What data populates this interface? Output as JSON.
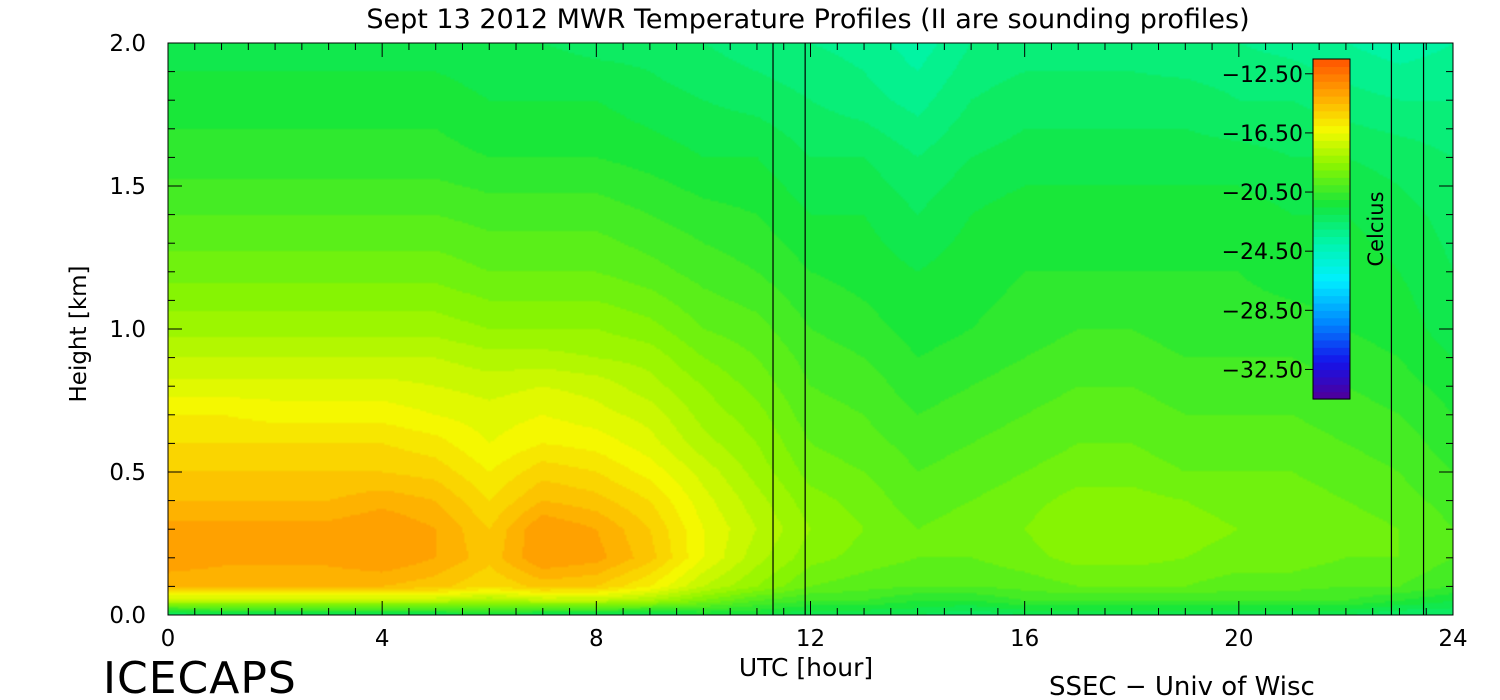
{
  "chart_data": {
    "type": "heatmap",
    "title": "Sept 13 2012 MWR Temperature Profiles (II are sounding profiles)",
    "xlabel": "UTC [hour]",
    "ylabel": "Height [km]",
    "xlim": [
      0,
      24
    ],
    "ylim": [
      0,
      2
    ],
    "x_ticks": [
      0,
      4,
      8,
      12,
      16,
      20,
      24
    ],
    "x_tick_labels": [
      "0",
      "4",
      "8",
      "12",
      "16",
      "20",
      "24"
    ],
    "y_ticks": [
      0.0,
      0.5,
      1.0,
      1.5,
      2.0
    ],
    "y_tick_labels": [
      "0.0",
      "0.5",
      "1.0",
      "1.5",
      "2.0"
    ],
    "colorbar": {
      "label": "Celcius",
      "range": [
        -34.5,
        -11.5
      ],
      "tick_values": [
        -12.5,
        -16.5,
        -20.5,
        -24.5,
        -28.5,
        -32.5
      ],
      "tick_labels": [
        "−12.50",
        "−16.50",
        "−20.50",
        "−24.50",
        "−28.50",
        "−32.50"
      ]
    },
    "sounding_profiles": [
      {
        "start": 11.3,
        "end": 11.9
      },
      {
        "start": 22.85,
        "end": 23.45
      }
    ],
    "profile_times": [
      0,
      1,
      2,
      3,
      4,
      5,
      6,
      7,
      8,
      9,
      10,
      11,
      12,
      13,
      14,
      15,
      16,
      17,
      18,
      19,
      20,
      21,
      22,
      23,
      24
    ],
    "profile_heights": [
      0.0,
      0.05,
      0.1,
      0.2,
      0.3,
      0.4,
      0.5,
      0.6,
      0.7,
      0.8,
      0.9,
      1.0,
      1.2,
      1.4,
      1.6,
      1.8,
      2.0
    ],
    "temperatures": [
      [
        -22.5,
        -22.0,
        -22.0,
        -22.0,
        -22.0,
        -22.0,
        -21.5,
        -22.0,
        -22.0,
        -22.0,
        -21.5,
        -21.5,
        -22.0,
        -22.0,
        -22.0,
        -22.5,
        -22.0,
        -22.0,
        -22.0,
        -22.0,
        -22.0,
        -22.0,
        -22.0,
        -22.5,
        -22.5
      ],
      [
        -17.5,
        -17.5,
        -17.5,
        -17.5,
        -17.5,
        -17.5,
        -18.0,
        -17.5,
        -17.5,
        -18.0,
        -19.0,
        -20.0,
        -20.5,
        -20.5,
        -21.0,
        -21.0,
        -20.5,
        -20.5,
        -20.5,
        -20.5,
        -20.5,
        -20.5,
        -20.5,
        -21.0,
        -21.5
      ],
      [
        -14.5,
        -14.5,
        -14.5,
        -14.5,
        -14.5,
        -14.8,
        -15.5,
        -14.8,
        -15.0,
        -16.0,
        -17.5,
        -18.5,
        -19.5,
        -19.8,
        -20.0,
        -20.0,
        -19.8,
        -19.5,
        -19.5,
        -19.5,
        -19.8,
        -19.8,
        -20.0,
        -20.0,
        -20.5
      ],
      [
        -13.5,
        -13.8,
        -13.8,
        -13.8,
        -13.5,
        -14.0,
        -14.8,
        -13.5,
        -13.8,
        -14.8,
        -16.5,
        -17.8,
        -18.8,
        -19.2,
        -19.5,
        -19.5,
        -19.2,
        -18.8,
        -18.8,
        -19.0,
        -19.2,
        -19.2,
        -19.5,
        -19.5,
        -20.0
      ],
      [
        -13.8,
        -13.8,
        -13.8,
        -13.8,
        -13.5,
        -14.0,
        -15.0,
        -13.5,
        -14.0,
        -15.0,
        -16.5,
        -17.5,
        -18.5,
        -19.0,
        -19.5,
        -19.2,
        -19.0,
        -18.5,
        -18.5,
        -18.8,
        -19.0,
        -19.0,
        -19.2,
        -19.5,
        -20.0
      ],
      [
        -14.5,
        -14.5,
        -14.5,
        -14.5,
        -14.2,
        -14.5,
        -15.5,
        -14.5,
        -14.8,
        -15.5,
        -16.8,
        -17.8,
        -18.8,
        -19.2,
        -19.8,
        -19.5,
        -19.2,
        -18.8,
        -18.8,
        -19.0,
        -19.2,
        -19.2,
        -19.5,
        -19.8,
        -20.2
      ],
      [
        -15.0,
        -15.0,
        -15.0,
        -15.0,
        -15.0,
        -15.2,
        -16.0,
        -15.2,
        -15.5,
        -16.2,
        -17.2,
        -18.2,
        -19.2,
        -19.5,
        -20.0,
        -19.8,
        -19.5,
        -19.2,
        -19.2,
        -19.5,
        -19.5,
        -19.5,
        -19.8,
        -20.0,
        -20.5
      ],
      [
        -15.5,
        -15.5,
        -15.5,
        -15.5,
        -15.5,
        -15.8,
        -16.5,
        -16.0,
        -16.2,
        -16.8,
        -17.8,
        -18.5,
        -19.5,
        -19.8,
        -20.2,
        -20.0,
        -19.8,
        -19.5,
        -19.5,
        -19.8,
        -19.8,
        -19.8,
        -20.0,
        -20.2,
        -20.8
      ],
      [
        -16.0,
        -16.0,
        -16.2,
        -16.2,
        -16.2,
        -16.5,
        -16.8,
        -16.5,
        -16.8,
        -17.2,
        -18.2,
        -18.8,
        -19.8,
        -20.0,
        -20.5,
        -20.2,
        -20.0,
        -19.8,
        -19.8,
        -20.0,
        -20.0,
        -20.0,
        -20.2,
        -20.5,
        -21.0
      ],
      [
        -16.8,
        -16.8,
        -16.8,
        -16.8,
        -16.8,
        -17.0,
        -17.2,
        -17.0,
        -17.2,
        -17.8,
        -18.5,
        -19.2,
        -20.0,
        -20.2,
        -20.8,
        -20.5,
        -20.2,
        -20.0,
        -20.0,
        -20.2,
        -20.2,
        -20.2,
        -20.5,
        -20.8,
        -21.2
      ],
      [
        -17.5,
        -17.5,
        -17.5,
        -17.5,
        -17.5,
        -17.5,
        -17.8,
        -17.8,
        -18.0,
        -18.2,
        -19.0,
        -19.5,
        -20.2,
        -20.5,
        -21.0,
        -20.8,
        -20.5,
        -20.2,
        -20.2,
        -20.5,
        -20.5,
        -20.5,
        -20.8,
        -21.0,
        -21.5
      ],
      [
        -18.2,
        -18.2,
        -18.2,
        -18.2,
        -18.2,
        -18.2,
        -18.5,
        -18.5,
        -18.5,
        -18.8,
        -19.5,
        -19.8,
        -20.5,
        -20.8,
        -21.2,
        -21.0,
        -20.8,
        -20.5,
        -20.5,
        -20.8,
        -20.8,
        -20.8,
        -21.0,
        -21.2,
        -21.8
      ],
      [
        -19.2,
        -19.2,
        -19.2,
        -19.2,
        -19.2,
        -19.2,
        -19.5,
        -19.5,
        -19.5,
        -19.8,
        -20.2,
        -20.5,
        -21.0,
        -21.2,
        -21.5,
        -21.2,
        -21.0,
        -21.0,
        -21.0,
        -21.0,
        -21.0,
        -21.2,
        -21.2,
        -21.5,
        -22.0
      ],
      [
        -20.0,
        -20.0,
        -20.0,
        -20.0,
        -20.0,
        -20.0,
        -20.2,
        -20.2,
        -20.2,
        -20.5,
        -20.8,
        -21.0,
        -21.5,
        -21.5,
        -22.0,
        -21.5,
        -21.2,
        -21.2,
        -21.2,
        -21.2,
        -21.2,
        -21.5,
        -21.5,
        -21.8,
        -22.2
      ],
      [
        -20.8,
        -20.8,
        -20.8,
        -20.8,
        -20.8,
        -20.8,
        -21.0,
        -21.0,
        -21.0,
        -21.2,
        -21.5,
        -21.5,
        -22.0,
        -22.0,
        -22.5,
        -22.0,
        -21.8,
        -21.8,
        -21.8,
        -21.8,
        -21.8,
        -22.0,
        -22.0,
        -22.2,
        -22.5
      ],
      [
        -21.2,
        -21.2,
        -21.2,
        -21.2,
        -21.2,
        -21.2,
        -21.5,
        -21.5,
        -21.5,
        -21.8,
        -22.0,
        -22.2,
        -22.5,
        -22.8,
        -23.2,
        -22.5,
        -22.2,
        -22.2,
        -22.2,
        -22.2,
        -22.5,
        -22.5,
        -22.8,
        -23.0,
        -23.0
      ],
      [
        -21.8,
        -21.8,
        -21.8,
        -21.8,
        -21.8,
        -21.8,
        -22.0,
        -22.0,
        -22.2,
        -22.2,
        -22.5,
        -22.8,
        -23.0,
        -23.2,
        -23.8,
        -23.0,
        -22.8,
        -22.8,
        -22.8,
        -23.0,
        -23.0,
        -23.2,
        -23.5,
        -23.8,
        -23.5
      ]
    ]
  },
  "footer": {
    "logo_text": "ICECAPS",
    "credit": "SSEC − Univ of Wisc"
  }
}
